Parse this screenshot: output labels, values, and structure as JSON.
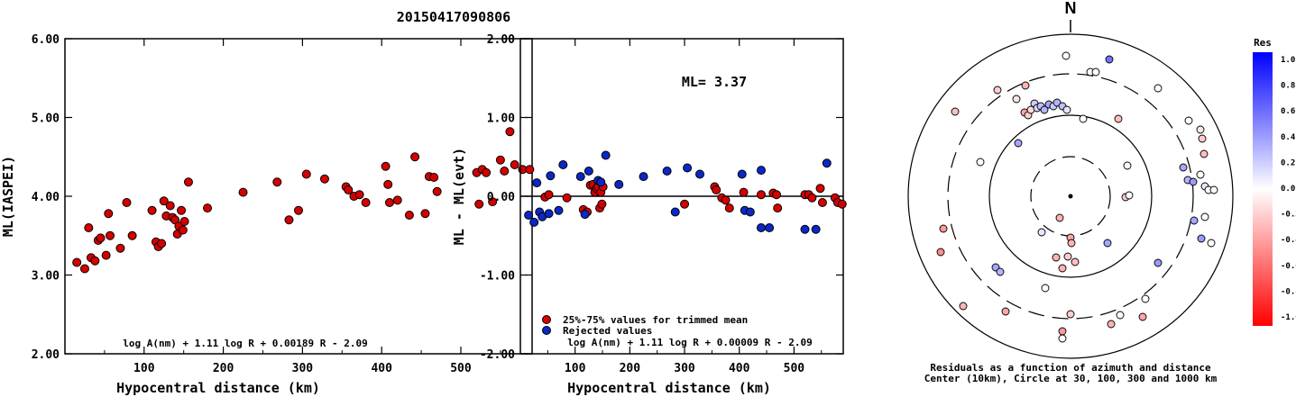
{
  "title": "20150417090806",
  "chart_data": [
    {
      "type": "scatter",
      "xlabel": "Hypocentral distance (km)",
      "ylabel": "ML(IASPEI)",
      "xlim": [
        0,
        590
      ],
      "ylim": [
        2.0,
        6.0
      ],
      "xticks": [
        "100",
        "200",
        "300",
        "400",
        "500"
      ],
      "yticks": [
        "2.00",
        "3.00",
        "4.00",
        "5.00",
        "6.00"
      ],
      "formula": "log A(nm) + 1.11 log R + 0.00189 R - 2.09",
      "color": "#d40000",
      "points": [
        [
          15,
          3.16
        ],
        [
          25,
          3.08
        ],
        [
          30,
          3.6
        ],
        [
          33,
          3.22
        ],
        [
          38,
          3.18
        ],
        [
          42,
          3.44
        ],
        [
          45,
          3.47
        ],
        [
          52,
          3.25
        ],
        [
          55,
          3.78
        ],
        [
          57,
          3.5
        ],
        [
          70,
          3.34
        ],
        [
          78,
          3.92
        ],
        [
          85,
          3.5
        ],
        [
          110,
          3.82
        ],
        [
          115,
          3.42
        ],
        [
          118,
          3.36
        ],
        [
          122,
          3.4
        ],
        [
          125,
          3.94
        ],
        [
          128,
          3.75
        ],
        [
          133,
          3.88
        ],
        [
          136,
          3.73
        ],
        [
          139,
          3.7
        ],
        [
          142,
          3.52
        ],
        [
          144,
          3.62
        ],
        [
          147,
          3.82
        ],
        [
          149,
          3.57
        ],
        [
          151,
          3.68
        ],
        [
          156,
          4.18
        ],
        [
          180,
          3.85
        ],
        [
          225,
          4.05
        ],
        [
          268,
          4.18
        ],
        [
          283,
          3.7
        ],
        [
          295,
          3.82
        ],
        [
          305,
          4.28
        ],
        [
          328,
          4.22
        ],
        [
          355,
          4.12
        ],
        [
          358,
          4.08
        ],
        [
          365,
          4.0
        ],
        [
          372,
          4.02
        ],
        [
          380,
          3.92
        ],
        [
          405,
          4.38
        ],
        [
          408,
          4.15
        ],
        [
          410,
          3.92
        ],
        [
          420,
          3.95
        ],
        [
          435,
          3.76
        ],
        [
          442,
          4.5
        ],
        [
          455,
          3.78
        ],
        [
          460,
          4.25
        ],
        [
          466,
          4.24
        ],
        [
          470,
          4.06
        ],
        [
          520,
          4.3
        ],
        [
          523,
          3.9
        ],
        [
          527,
          4.34
        ],
        [
          532,
          4.3
        ],
        [
          540,
          3.93
        ],
        [
          550,
          4.46
        ],
        [
          555,
          4.32
        ],
        [
          562,
          4.82
        ],
        [
          568,
          4.4
        ],
        [
          578,
          4.34
        ],
        [
          587,
          4.34
        ]
      ]
    },
    {
      "type": "scatter",
      "xlabel": "Hypocentral distance (km)",
      "ylabel": "ML - ML(evt)",
      "xlim": [
        0,
        590
      ],
      "ylim": [
        -2.0,
        2.0
      ],
      "xticks": [
        "100",
        "200",
        "300",
        "400",
        "500"
      ],
      "yticks": [
        "-2.00",
        "-1.00",
        "0.00",
        "1.00",
        "2.00"
      ],
      "annotation": "ML= 3.37",
      "formula": "log A(nm) + 1.11 log R + 0.00009 R - 2.09",
      "legend": [
        {
          "label": "25%-75% values for trimmed mean",
          "color": "#d40000"
        },
        {
          "label": "Rejected values",
          "color": "#0a28c8"
        }
      ],
      "series": [
        {
          "name": "25%-75% values for trimmed mean",
          "color": "#d40000",
          "points": [
            [
              45,
              -0.01
            ],
            [
              52,
              0.02
            ],
            [
              85,
              -0.02
            ],
            [
              115,
              -0.17
            ],
            [
              122,
              -0.2
            ],
            [
              128,
              0.14
            ],
            [
              133,
              0.15
            ],
            [
              136,
              0.05
            ],
            [
              139,
              0.1
            ],
            [
              142,
              0.12
            ],
            [
              145,
              -0.15
            ],
            [
              147,
              0.05
            ],
            [
              149,
              -0.1
            ],
            [
              151,
              0.12
            ],
            [
              300,
              -0.1
            ],
            [
              355,
              0.12
            ],
            [
              358,
              0.08
            ],
            [
              368,
              -0.02
            ],
            [
              375,
              -0.05
            ],
            [
              382,
              -0.15
            ],
            [
              408,
              0.05
            ],
            [
              440,
              0.02
            ],
            [
              462,
              0.04
            ],
            [
              468,
              0.02
            ],
            [
              470,
              -0.15
            ],
            [
              520,
              0.02
            ],
            [
              527,
              0.02
            ],
            [
              533,
              -0.02
            ],
            [
              548,
              0.1
            ],
            [
              552,
              -0.08
            ],
            [
              575,
              -0.02
            ],
            [
              580,
              -0.08
            ],
            [
              588,
              -0.1
            ]
          ]
        },
        {
          "name": "Rejected values",
          "color": "#0a28c8",
          "points": [
            [
              15,
              -0.24
            ],
            [
              25,
              -0.33
            ],
            [
              30,
              0.17
            ],
            [
              35,
              -0.2
            ],
            [
              40,
              -0.26
            ],
            [
              52,
              -0.22
            ],
            [
              55,
              0.26
            ],
            [
              70,
              -0.18
            ],
            [
              78,
              0.4
            ],
            [
              110,
              0.25
            ],
            [
              118,
              -0.23
            ],
            [
              125,
              0.32
            ],
            [
              142,
              0.2
            ],
            [
              147,
              0.18
            ],
            [
              156,
              0.52
            ],
            [
              180,
              0.15
            ],
            [
              225,
              0.25
            ],
            [
              268,
              0.32
            ],
            [
              283,
              -0.2
            ],
            [
              305,
              0.36
            ],
            [
              328,
              0.28
            ],
            [
              405,
              0.28
            ],
            [
              410,
              -0.18
            ],
            [
              420,
              -0.2
            ],
            [
              440,
              0.33
            ],
            [
              440,
              -0.4
            ],
            [
              455,
              -0.4
            ],
            [
              520,
              -0.42
            ],
            [
              540,
              -0.42
            ],
            [
              560,
              0.42
            ]
          ]
        }
      ]
    },
    {
      "type": "scatter",
      "subtype": "polar",
      "north_label": "N",
      "caption_line1": "Residuals as a function of azimuth and distance",
      "caption_line2": "Center (10km), Circle at 30, 100, 300 and 1000 km",
      "colorbar_title": "Res",
      "colorbar_ticks": [
        "1.0",
        "0.8",
        "0.6",
        "0.4",
        "0.2",
        "0.0",
        "-0.2",
        "-0.4",
        "-0.6",
        "-0.8",
        "-1.0"
      ],
      "points_res": [
        [
          -0.1,
          0.0
        ],
        [
          -0.05,
          -0.02
        ],
        [
          0.03,
          -0.15
        ],
        [
          0.05,
          0.0
        ],
        [
          0.0,
          0.12
        ],
        [
          0.02,
          0.0
        ],
        [
          0.05,
          0.14
        ],
        [
          0.03,
          0.3
        ]
      ]
    }
  ]
}
